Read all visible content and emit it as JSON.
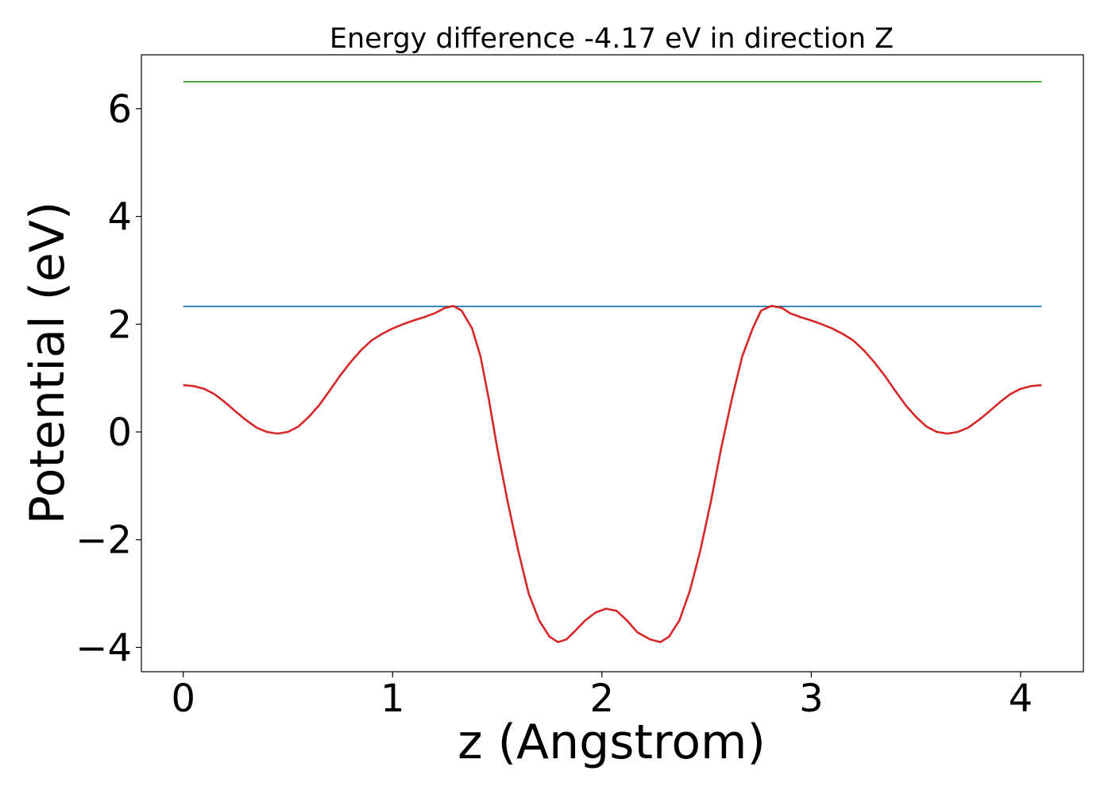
{
  "chart_data": {
    "type": "line",
    "title": "Energy difference -4.17 eV in direction Z",
    "xlabel": "z (Angstrom)",
    "ylabel": "Potential (eV)",
    "xlim": [
      -0.2,
      4.3
    ],
    "ylim": [
      -4.45,
      7.0
    ],
    "xticks": [
      0,
      1,
      2,
      3,
      4
    ],
    "xtick_labels": [
      "0",
      "1",
      "2",
      "3",
      "4"
    ],
    "yticks": [
      -4,
      -2,
      0,
      2,
      4,
      6
    ],
    "ytick_labels": [
      "−4",
      "−2",
      "0",
      "2",
      "4",
      "6"
    ],
    "grid": false,
    "series": [
      {
        "color": "#2ca02c",
        "x": [
          0,
          4.1
        ],
        "y": [
          6.5,
          6.5
        ]
      },
      {
        "color": "#1f77b4",
        "x": [
          0,
          4.1
        ],
        "y": [
          2.33,
          2.33
        ]
      },
      {
        "color": "#d62728",
        "x": [
          0,
          0.05,
          0.1,
          0.15,
          0.2,
          0.25,
          0.3,
          0.35,
          0.4,
          0.45,
          0.5,
          0.55,
          0.6,
          0.65,
          0.7,
          0.75,
          0.8,
          0.85,
          0.9,
          0.95,
          1.0,
          1.05,
          1.1,
          1.15,
          1.2,
          1.25,
          1.29,
          1.33,
          1.38,
          1.42,
          1.46,
          1.5,
          1.55,
          1.6,
          1.65,
          1.7,
          1.75,
          1.79,
          1.83,
          1.87,
          1.92,
          1.97,
          2.02,
          2.07,
          2.12,
          2.17,
          2.23,
          2.28,
          2.32,
          2.37,
          2.42,
          2.47,
          2.52,
          2.57,
          2.62,
          2.67,
          2.72,
          2.76,
          2.81,
          2.86,
          2.9,
          2.95,
          3.0,
          3.05,
          3.1,
          3.15,
          3.2,
          3.25,
          3.3,
          3.35,
          3.4,
          3.45,
          3.5,
          3.55,
          3.6,
          3.65,
          3.7,
          3.75,
          3.8,
          3.85,
          3.9,
          3.95,
          4.0,
          4.05,
          4.1
        ],
        "y": [
          0.87,
          0.85,
          0.8,
          0.7,
          0.55,
          0.38,
          0.22,
          0.08,
          0.0,
          -0.03,
          0.0,
          0.1,
          0.28,
          0.5,
          0.77,
          1.05,
          1.3,
          1.52,
          1.7,
          1.82,
          1.92,
          2.0,
          2.07,
          2.13,
          2.2,
          2.3,
          2.34,
          2.25,
          1.92,
          1.4,
          0.6,
          -0.3,
          -1.3,
          -2.2,
          -3.0,
          -3.5,
          -3.8,
          -3.9,
          -3.85,
          -3.7,
          -3.5,
          -3.35,
          -3.28,
          -3.32,
          -3.5,
          -3.72,
          -3.85,
          -3.9,
          -3.8,
          -3.5,
          -2.95,
          -2.2,
          -1.3,
          -0.3,
          0.6,
          1.4,
          1.92,
          2.25,
          2.34,
          2.3,
          2.2,
          2.13,
          2.07,
          2.0,
          1.92,
          1.82,
          1.7,
          1.52,
          1.3,
          1.05,
          0.77,
          0.5,
          0.28,
          0.1,
          0.0,
          -0.03,
          0.0,
          0.08,
          0.22,
          0.38,
          0.55,
          0.7,
          0.8,
          0.85,
          0.87
        ]
      }
    ]
  }
}
